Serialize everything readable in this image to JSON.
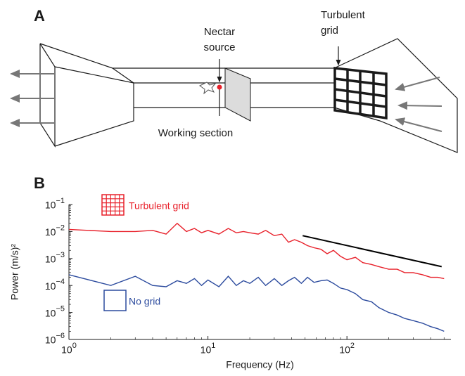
{
  "panel_a": {
    "label": "A",
    "nectar_source": [
      "Nectar",
      "source"
    ],
    "turbulent_grid": [
      "Turbulent",
      "grid"
    ],
    "working_section": "Working section"
  },
  "panel_b": {
    "label": "B"
  },
  "chart_data": {
    "type": "line",
    "xlabel": "Frequency (Hz)",
    "ylabel": "Power (m/s)²",
    "log_x": true,
    "log_y": true,
    "xlim": [
      1,
      560
    ],
    "ylim": [
      1e-06,
      0.1
    ],
    "xticks": [
      {
        "value": 1,
        "label": "10^0"
      },
      {
        "value": 10,
        "label": "10^1"
      },
      {
        "value": 100,
        "label": "10^2"
      }
    ],
    "yticks": [
      {
        "value": 1e-06,
        "label": "10^−6"
      },
      {
        "value": 1e-05,
        "label": "10^−5"
      },
      {
        "value": 0.0001,
        "label": "10^−4"
      },
      {
        "value": 0.001,
        "label": "10^−3"
      },
      {
        "value": 0.01,
        "label": "10^−2"
      },
      {
        "value": 0.1,
        "label": "10^−1"
      }
    ],
    "x": [
      1,
      2,
      3,
      4,
      5,
      6,
      7,
      8,
      9,
      10,
      12,
      14,
      16,
      18,
      20,
      23,
      26,
      30,
      34,
      38,
      42,
      47,
      52,
      58,
      65,
      72,
      80,
      90,
      100,
      115,
      130,
      150,
      170,
      200,
      230,
      260,
      300,
      350,
      400,
      450,
      500
    ],
    "series": [
      {
        "name": "Turbulent grid",
        "color": "#e8202a",
        "values": [
          0.012,
          0.01,
          0.01,
          0.011,
          0.008,
          0.02,
          0.01,
          0.013,
          0.009,
          0.011,
          0.008,
          0.013,
          0.009,
          0.01,
          0.009,
          0.008,
          0.011,
          0.007,
          0.008,
          0.004,
          0.005,
          0.004,
          0.003,
          0.0025,
          0.0022,
          0.0015,
          0.002,
          0.0012,
          0.0009,
          0.0011,
          0.0007,
          0.0006,
          0.0005,
          0.0004,
          0.0004,
          0.0003,
          0.0003,
          0.00025,
          0.0002,
          0.0002,
          0.00018
        ]
      },
      {
        "name": "No grid",
        "color": "#2c4b9e",
        "values": [
          0.00025,
          0.0001,
          0.00022,
          0.0001,
          9e-05,
          0.00015,
          0.00012,
          0.00018,
          0.0001,
          0.00016,
          9e-05,
          0.00022,
          0.0001,
          0.00015,
          0.00012,
          0.0002,
          0.0001,
          0.00018,
          0.0001,
          0.00015,
          0.0002,
          0.00012,
          0.0002,
          0.00013,
          0.00015,
          0.00016,
          0.00012,
          8e-05,
          7e-05,
          5e-05,
          3e-05,
          2.5e-05,
          1.5e-05,
          1e-05,
          8e-06,
          6e-06,
          5e-06,
          4e-06,
          3e-06,
          2.5e-06,
          2e-06
        ]
      }
    ],
    "reference_line": {
      "color": "#000000",
      "x": [
        48,
        480
      ],
      "values": [
        0.007,
        0.0005
      ]
    }
  }
}
